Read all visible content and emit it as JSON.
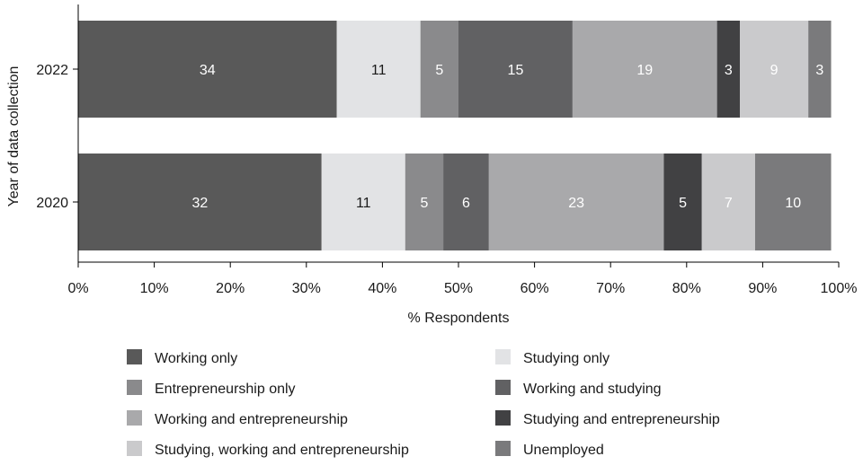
{
  "chart_data": {
    "type": "bar",
    "orientation": "horizontal",
    "stacked": true,
    "categories": [
      "2022",
      "2020"
    ],
    "xlabel": "% Respondents",
    "ylabel": "Year of data collection",
    "xlim": [
      0,
      100
    ],
    "x_ticks": [
      "0%",
      "10%",
      "20%",
      "30%",
      "40%",
      "50%",
      "60%",
      "70%",
      "80%",
      "90%",
      "100%"
    ],
    "grid": false,
    "legend_position": "bottom",
    "series": [
      {
        "name": "Working only",
        "values": [
          34,
          32
        ],
        "color": "#595959",
        "label_color": "#ffffff"
      },
      {
        "name": "Studying only",
        "values": [
          11,
          11
        ],
        "color": "#e2e3e5",
        "label_color": "#1a1a1a"
      },
      {
        "name": "Entrepreneurship only",
        "values": [
          5,
          5
        ],
        "color": "#8a8a8c",
        "label_color": "#ffffff"
      },
      {
        "name": "Working and studying",
        "values": [
          15,
          6
        ],
        "color": "#616163",
        "label_color": "#ffffff"
      },
      {
        "name": "Working and entrepreneurship",
        "values": [
          19,
          23
        ],
        "color": "#a9a9ab",
        "label_color": "#ffffff"
      },
      {
        "name": "Studying and entrepreneurship",
        "values": [
          3,
          5
        ],
        "color": "#414143",
        "label_color": "#ffffff"
      },
      {
        "name": "Studying, working and entrepreneurship",
        "values": [
          9,
          7
        ],
        "color": "#cacacc",
        "label_color": "#ffffff"
      },
      {
        "name": "Unemployed",
        "values": [
          3,
          10
        ],
        "color": "#7a7a7c",
        "label_color": "#ffffff"
      }
    ]
  }
}
